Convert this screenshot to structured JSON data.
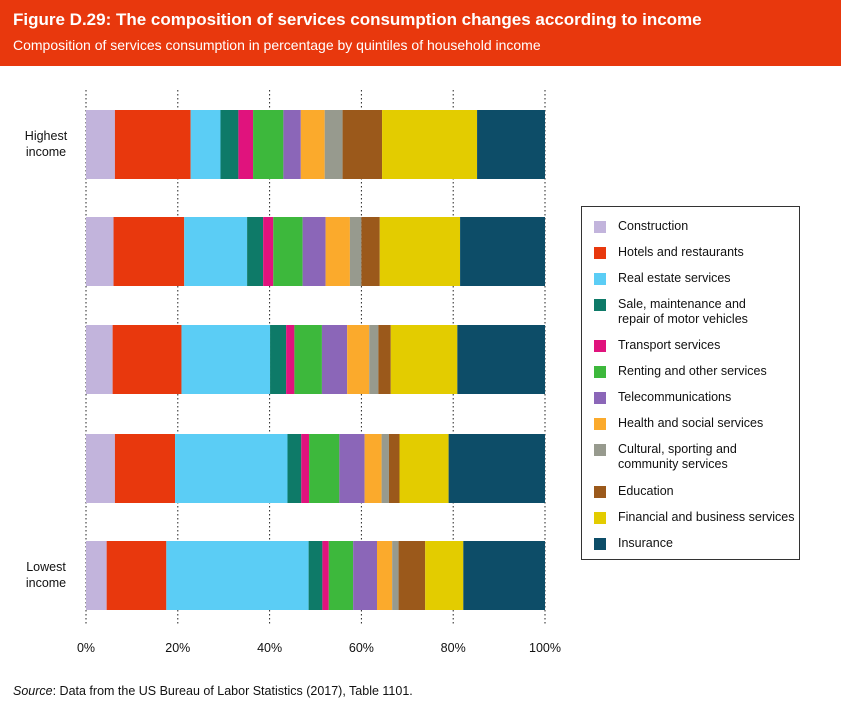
{
  "header": {
    "title": "Figure D.29: The composition of services consumption changes according to income",
    "subtitle": "Composition of services consumption in percentage by quintiles of household income"
  },
  "source": {
    "prefix": "Source",
    "text": ": Data from the US Bureau of Labor Statistics (2017), Table 1101."
  },
  "chart_data": {
    "type": "bar",
    "orientation": "horizontal",
    "stacked": true,
    "categories": [
      "Highest income",
      "",
      "",
      "",
      "Lowest income"
    ],
    "category_labels": [
      [
        "Highest",
        "income"
      ],
      [],
      [],
      [],
      [
        "Lowest",
        "income"
      ]
    ],
    "xlim": [
      0,
      100
    ],
    "x_ticks": [
      "0%",
      "20%",
      "40%",
      "60%",
      "80%",
      "100%"
    ],
    "grid": "vertical",
    "legend_position": "right",
    "series": [
      {
        "name": "Construction",
        "color": "#c2b4dc",
        "values": [
          6.3,
          6.0,
          5.8,
          6.3,
          4.5
        ]
      },
      {
        "name": "Hotels and restaurants",
        "color": "#e8380d",
        "values": [
          16.5,
          15.4,
          15.0,
          13.1,
          13.0
        ]
      },
      {
        "name": "Real estate services",
        "color": "#5bcdf5",
        "values": [
          6.5,
          13.7,
          19.3,
          24.5,
          31.0
        ]
      },
      {
        "name": "Sale, maintenance and repair of motor vehicles",
        "color": "#0e7a68",
        "values": [
          3.9,
          3.5,
          3.5,
          3.0,
          3.0
        ]
      },
      {
        "name": "Transport services",
        "color": "#e0137d",
        "values": [
          3.2,
          2.2,
          1.8,
          1.7,
          1.4
        ]
      },
      {
        "name": "Renting and other services",
        "color": "#3db83c",
        "values": [
          6.6,
          6.4,
          6.0,
          6.6,
          5.3
        ]
      },
      {
        "name": "Telecommunications",
        "color": "#8b66b8",
        "values": [
          3.8,
          5.0,
          5.5,
          5.5,
          5.2
        ]
      },
      {
        "name": "Health and social services",
        "color": "#fbaa2c",
        "values": [
          5.2,
          5.3,
          4.8,
          3.7,
          3.3
        ]
      },
      {
        "name": "Cultural, sporting and community services",
        "color": "#979a8e",
        "values": [
          3.9,
          2.5,
          2.0,
          1.6,
          1.4
        ]
      },
      {
        "name": "Education",
        "color": "#9b591b",
        "values": [
          8.6,
          4.0,
          2.7,
          2.3,
          5.8
        ]
      },
      {
        "name": "Financial and business services",
        "color": "#e3cc00",
        "values": [
          20.7,
          17.5,
          14.5,
          10.7,
          8.3
        ]
      },
      {
        "name": "Insurance",
        "color": "#0d4d68",
        "values": [
          14.8,
          18.5,
          19.1,
          21.0,
          17.8
        ]
      }
    ]
  }
}
